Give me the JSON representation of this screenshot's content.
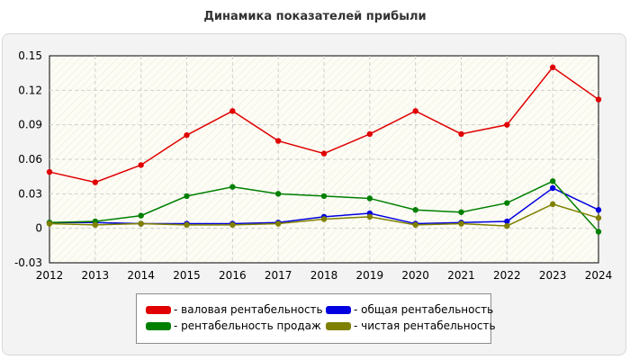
{
  "chart_data": {
    "type": "line",
    "title": "Динамика показателей прибыли",
    "xlabel": "",
    "ylabel": "",
    "x": [
      "2012",
      "2013",
      "2014",
      "2015",
      "2016",
      "2017",
      "2018",
      "2019",
      "2020",
      "2021",
      "2022",
      "2023",
      "2024"
    ],
    "ylim": [
      -0.03,
      0.15
    ],
    "yticks": [
      "-0.03",
      "0",
      "0.03",
      "0.06",
      "0.09",
      "0.12",
      "0.15"
    ],
    "grid": true,
    "legend_position": "bottom",
    "series": [
      {
        "name": "валовая рентабельность",
        "color": "#e00000",
        "values": [
          0.049,
          0.04,
          0.055,
          0.081,
          0.102,
          0.076,
          0.065,
          0.082,
          0.102,
          0.082,
          0.09,
          0.14,
          0.112
        ]
      },
      {
        "name": "общая рентабельность",
        "color": "#0000e0",
        "values": [
          0.005,
          0.005,
          0.004,
          0.004,
          0.004,
          0.005,
          0.01,
          0.013,
          0.004,
          0.005,
          0.006,
          0.035,
          0.016
        ]
      },
      {
        "name": "рентабельность продаж",
        "color": "#008000",
        "values": [
          0.005,
          0.006,
          0.011,
          0.028,
          0.036,
          0.03,
          0.028,
          0.026,
          0.016,
          0.014,
          0.022,
          0.041,
          -0.003
        ]
      },
      {
        "name": "чистая рентабельность",
        "color": "#808000",
        "values": [
          0.004,
          0.003,
          0.004,
          0.003,
          0.003,
          0.004,
          0.008,
          0.01,
          0.003,
          0.004,
          0.002,
          0.021,
          0.009
        ]
      }
    ]
  }
}
